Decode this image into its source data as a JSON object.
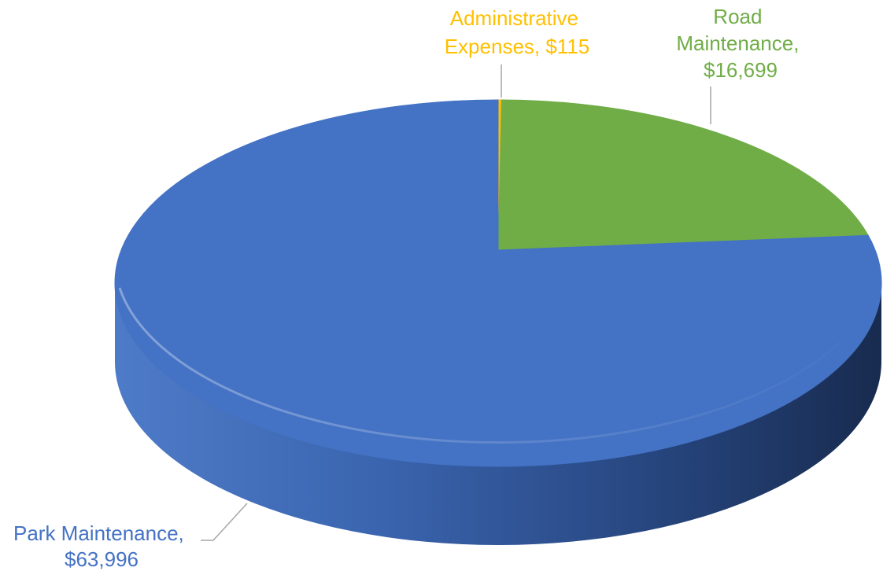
{
  "chart_data": {
    "type": "pie",
    "style": "3d",
    "slices": [
      {
        "name": "Administrative Expenses",
        "value": 115,
        "value_label": "$115",
        "color": "#FFC000"
      },
      {
        "name": "Road Maintenance",
        "value": 16699,
        "value_label": "$16,699",
        "color": "#70AD47"
      },
      {
        "name": "Park Maintenance",
        "value": 63996,
        "value_label": "$63,996",
        "color": "#4472C4"
      }
    ],
    "labels": [
      {
        "lines": [
          "Administrative",
          "Expenses, $115"
        ],
        "color": "#FFC000"
      },
      {
        "lines": [
          "Road",
          "Maintenance,",
          "$16,699"
        ],
        "color": "#70AD47"
      },
      {
        "lines": [
          "Park Maintenance,",
          "$63,996"
        ],
        "color": "#4472C4"
      }
    ],
    "legend": "none"
  }
}
